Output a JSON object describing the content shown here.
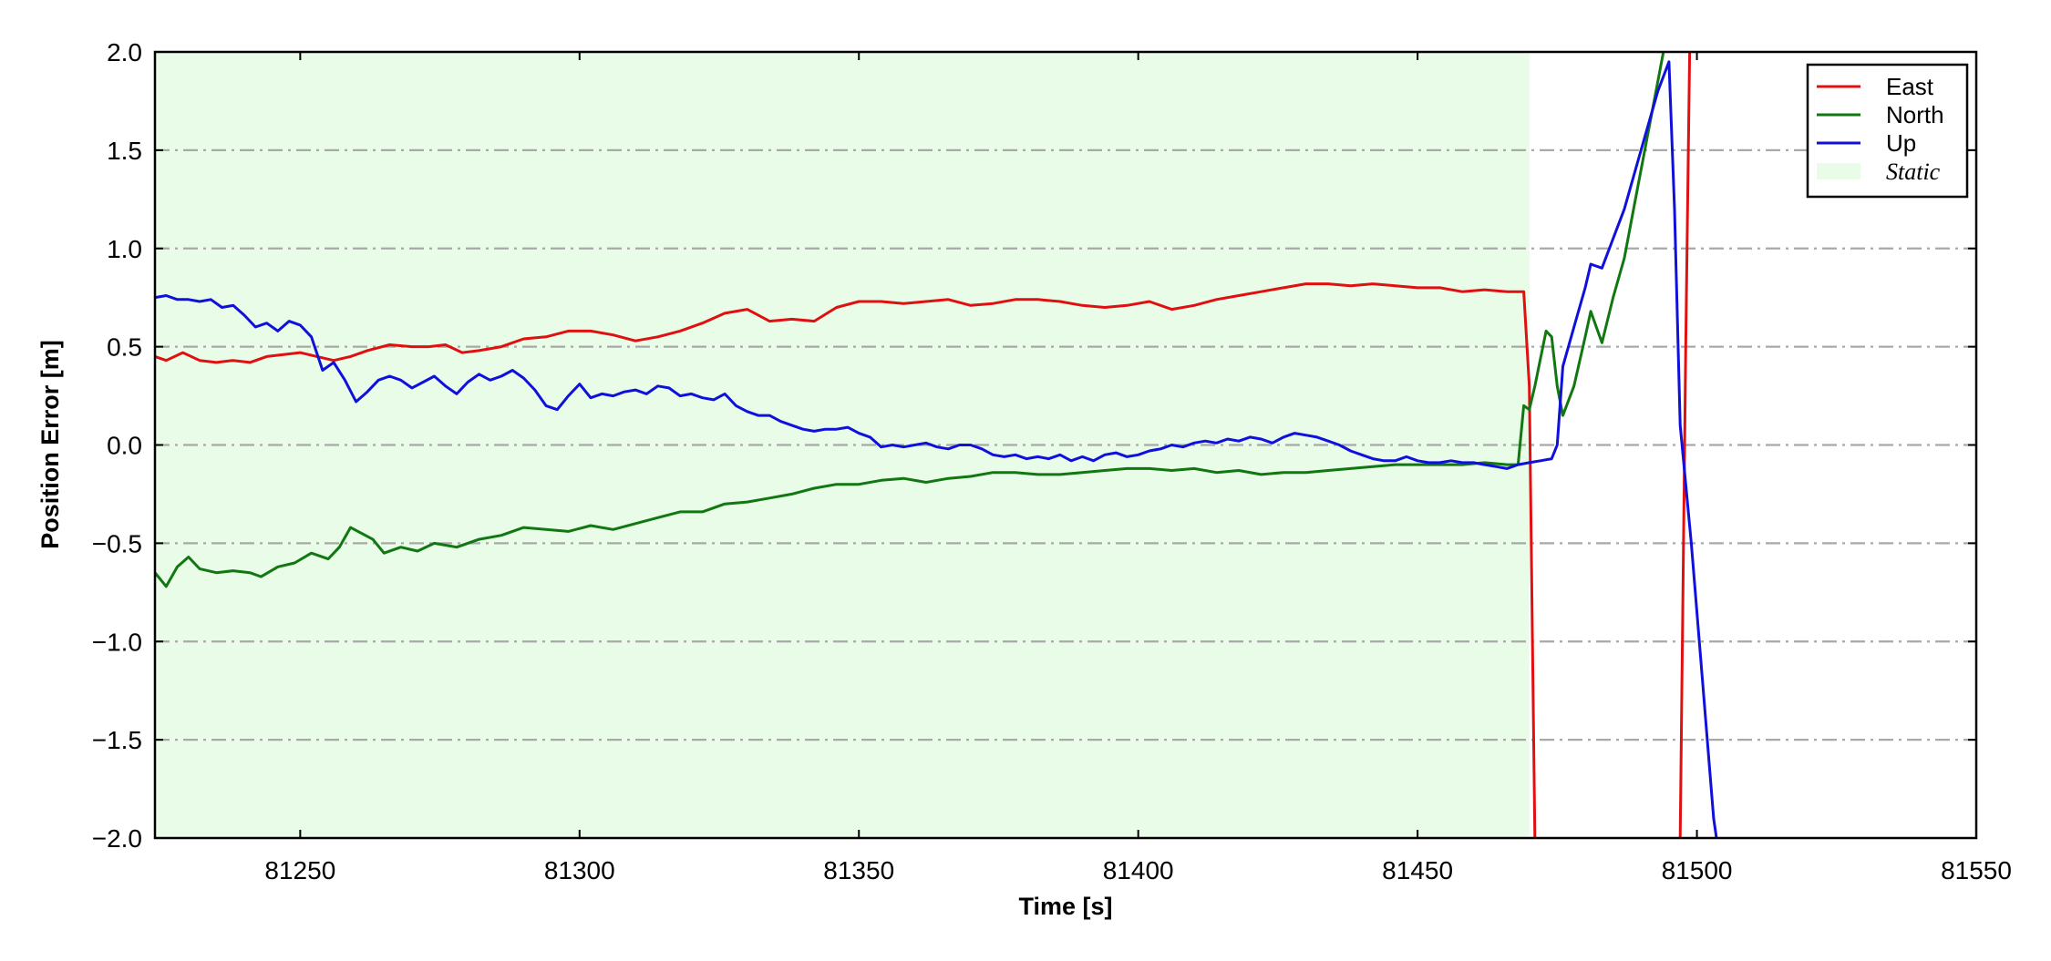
{
  "chart_data": {
    "type": "line",
    "title": "",
    "xlabel": "Time [s]",
    "ylabel": "Position Error [m]",
    "xlim": [
      81224,
      81550
    ],
    "ylim": [
      -2.0,
      2.0
    ],
    "x_ticks": [
      81250,
      81300,
      81350,
      81400,
      81450,
      81500,
      81550
    ],
    "x_tick_labels": [
      "81250",
      "81300",
      "81350",
      "81400",
      "81450",
      "81500",
      "81550"
    ],
    "y_ticks": [
      2.0,
      1.5,
      1.0,
      0.5,
      0.0,
      -0.5,
      -1.0,
      -1.5,
      -2.0
    ],
    "y_tick_labels": [
      "2.0",
      "1.5",
      "1.0",
      "0.5",
      "0.0",
      "−0.5",
      "−1.0",
      "−1.5",
      "−2.0"
    ],
    "grid": "horizontal dash-dot",
    "legend_position": "top-right",
    "shaded_region": {
      "label": "Static",
      "x": [
        81224,
        81470
      ],
      "color": "#e8fce8"
    },
    "series": [
      {
        "name": "East",
        "color": "#e01010",
        "points": [
          [
            81224,
            0.45
          ],
          [
            81226,
            0.43
          ],
          [
            81229,
            0.47
          ],
          [
            81232,
            0.43
          ],
          [
            81235,
            0.42
          ],
          [
            81238,
            0.43
          ],
          [
            81241,
            0.42
          ],
          [
            81244,
            0.45
          ],
          [
            81247,
            0.46
          ],
          [
            81250,
            0.47
          ],
          [
            81253,
            0.45
          ],
          [
            81256,
            0.43
          ],
          [
            81259,
            0.45
          ],
          [
            81262,
            0.48
          ],
          [
            81266,
            0.51
          ],
          [
            81270,
            0.5
          ],
          [
            81273,
            0.5
          ],
          [
            81276,
            0.51
          ],
          [
            81279,
            0.47
          ],
          [
            81282,
            0.48
          ],
          [
            81286,
            0.5
          ],
          [
            81290,
            0.54
          ],
          [
            81294,
            0.55
          ],
          [
            81298,
            0.58
          ],
          [
            81302,
            0.58
          ],
          [
            81306,
            0.56
          ],
          [
            81310,
            0.53
          ],
          [
            81314,
            0.55
          ],
          [
            81318,
            0.58
          ],
          [
            81322,
            0.62
          ],
          [
            81326,
            0.67
          ],
          [
            81330,
            0.69
          ],
          [
            81334,
            0.63
          ],
          [
            81338,
            0.64
          ],
          [
            81342,
            0.63
          ],
          [
            81346,
            0.7
          ],
          [
            81350,
            0.73
          ],
          [
            81354,
            0.73
          ],
          [
            81358,
            0.72
          ],
          [
            81362,
            0.73
          ],
          [
            81366,
            0.74
          ],
          [
            81370,
            0.71
          ],
          [
            81374,
            0.72
          ],
          [
            81378,
            0.74
          ],
          [
            81382,
            0.74
          ],
          [
            81386,
            0.73
          ],
          [
            81390,
            0.71
          ],
          [
            81394,
            0.7
          ],
          [
            81398,
            0.71
          ],
          [
            81402,
            0.73
          ],
          [
            81406,
            0.69
          ],
          [
            81410,
            0.71
          ],
          [
            81414,
            0.74
          ],
          [
            81418,
            0.76
          ],
          [
            81422,
            0.78
          ],
          [
            81426,
            0.8
          ],
          [
            81430,
            0.82
          ],
          [
            81434,
            0.82
          ],
          [
            81438,
            0.81
          ],
          [
            81442,
            0.82
          ],
          [
            81446,
            0.81
          ],
          [
            81450,
            0.8
          ],
          [
            81454,
            0.8
          ],
          [
            81458,
            0.78
          ],
          [
            81462,
            0.79
          ],
          [
            81466,
            0.78
          ],
          [
            81469,
            0.78
          ],
          [
            81470,
            0.3
          ],
          [
            81471,
            -2.0
          ]
        ],
        "points_after_gap": [
          [
            81497,
            -2.0
          ],
          [
            81498,
            0.5
          ],
          [
            81498.7,
            2.0
          ]
        ]
      },
      {
        "name": "North",
        "color": "#117711",
        "points": [
          [
            81224,
            -0.65
          ],
          [
            81226,
            -0.72
          ],
          [
            81228,
            -0.62
          ],
          [
            81230,
            -0.57
          ],
          [
            81232,
            -0.63
          ],
          [
            81235,
            -0.65
          ],
          [
            81238,
            -0.64
          ],
          [
            81241,
            -0.65
          ],
          [
            81243,
            -0.67
          ],
          [
            81246,
            -0.62
          ],
          [
            81249,
            -0.6
          ],
          [
            81252,
            -0.55
          ],
          [
            81255,
            -0.58
          ],
          [
            81257,
            -0.52
          ],
          [
            81259,
            -0.42
          ],
          [
            81261,
            -0.45
          ],
          [
            81263,
            -0.48
          ],
          [
            81265,
            -0.55
          ],
          [
            81268,
            -0.52
          ],
          [
            81271,
            -0.54
          ],
          [
            81274,
            -0.5
          ],
          [
            81278,
            -0.52
          ],
          [
            81282,
            -0.48
          ],
          [
            81286,
            -0.46
          ],
          [
            81290,
            -0.42
          ],
          [
            81294,
            -0.43
          ],
          [
            81298,
            -0.44
          ],
          [
            81302,
            -0.41
          ],
          [
            81306,
            -0.43
          ],
          [
            81310,
            -0.4
          ],
          [
            81314,
            -0.37
          ],
          [
            81318,
            -0.34
          ],
          [
            81322,
            -0.34
          ],
          [
            81326,
            -0.3
          ],
          [
            81330,
            -0.29
          ],
          [
            81334,
            -0.27
          ],
          [
            81338,
            -0.25
          ],
          [
            81342,
            -0.22
          ],
          [
            81346,
            -0.2
          ],
          [
            81350,
            -0.2
          ],
          [
            81354,
            -0.18
          ],
          [
            81358,
            -0.17
          ],
          [
            81362,
            -0.19
          ],
          [
            81366,
            -0.17
          ],
          [
            81370,
            -0.16
          ],
          [
            81374,
            -0.14
          ],
          [
            81378,
            -0.14
          ],
          [
            81382,
            -0.15
          ],
          [
            81386,
            -0.15
          ],
          [
            81390,
            -0.14
          ],
          [
            81394,
            -0.13
          ],
          [
            81398,
            -0.12
          ],
          [
            81402,
            -0.12
          ],
          [
            81406,
            -0.13
          ],
          [
            81410,
            -0.12
          ],
          [
            81414,
            -0.14
          ],
          [
            81418,
            -0.13
          ],
          [
            81422,
            -0.15
          ],
          [
            81426,
            -0.14
          ],
          [
            81430,
            -0.14
          ],
          [
            81434,
            -0.13
          ],
          [
            81438,
            -0.12
          ],
          [
            81442,
            -0.11
          ],
          [
            81446,
            -0.1
          ],
          [
            81450,
            -0.1
          ],
          [
            81454,
            -0.1
          ],
          [
            81458,
            -0.1
          ],
          [
            81462,
            -0.09
          ],
          [
            81466,
            -0.1
          ],
          [
            81468,
            -0.1
          ],
          [
            81469,
            0.2
          ],
          [
            81470,
            0.18
          ],
          [
            81471,
            0.3
          ],
          [
            81473,
            0.58
          ],
          [
            81474,
            0.55
          ],
          [
            81475,
            0.3
          ],
          [
            81476,
            0.15
          ],
          [
            81478,
            0.3
          ],
          [
            81480,
            0.55
          ],
          [
            81481,
            0.68
          ],
          [
            81482,
            0.6
          ],
          [
            81483,
            0.52
          ],
          [
            81485,
            0.75
          ],
          [
            81487,
            0.95
          ],
          [
            81489,
            1.25
          ],
          [
            81491,
            1.55
          ],
          [
            81493,
            1.85
          ],
          [
            81494,
            2.0
          ]
        ]
      },
      {
        "name": "Up",
        "color": "#1010dd",
        "points": [
          [
            81224,
            0.75
          ],
          [
            81226,
            0.76
          ],
          [
            81228,
            0.74
          ],
          [
            81230,
            0.74
          ],
          [
            81232,
            0.73
          ],
          [
            81234,
            0.74
          ],
          [
            81236,
            0.7
          ],
          [
            81238,
            0.71
          ],
          [
            81240,
            0.66
          ],
          [
            81242,
            0.6
          ],
          [
            81244,
            0.62
          ],
          [
            81246,
            0.58
          ],
          [
            81248,
            0.63
          ],
          [
            81250,
            0.61
          ],
          [
            81252,
            0.55
          ],
          [
            81254,
            0.38
          ],
          [
            81256,
            0.42
          ],
          [
            81258,
            0.33
          ],
          [
            81260,
            0.22
          ],
          [
            81262,
            0.27
          ],
          [
            81264,
            0.33
          ],
          [
            81266,
            0.35
          ],
          [
            81268,
            0.33
          ],
          [
            81270,
            0.29
          ],
          [
            81272,
            0.32
          ],
          [
            81274,
            0.35
          ],
          [
            81276,
            0.3
          ],
          [
            81278,
            0.26
          ],
          [
            81280,
            0.32
          ],
          [
            81282,
            0.36
          ],
          [
            81284,
            0.33
          ],
          [
            81286,
            0.35
          ],
          [
            81288,
            0.38
          ],
          [
            81290,
            0.34
          ],
          [
            81292,
            0.28
          ],
          [
            81294,
            0.2
          ],
          [
            81296,
            0.18
          ],
          [
            81298,
            0.25
          ],
          [
            81300,
            0.31
          ],
          [
            81302,
            0.24
          ],
          [
            81304,
            0.26
          ],
          [
            81306,
            0.25
          ],
          [
            81308,
            0.27
          ],
          [
            81310,
            0.28
          ],
          [
            81312,
            0.26
          ],
          [
            81314,
            0.3
          ],
          [
            81316,
            0.29
          ],
          [
            81318,
            0.25
          ],
          [
            81320,
            0.26
          ],
          [
            81322,
            0.24
          ],
          [
            81324,
            0.23
          ],
          [
            81326,
            0.26
          ],
          [
            81328,
            0.2
          ],
          [
            81330,
            0.17
          ],
          [
            81332,
            0.15
          ],
          [
            81334,
            0.15
          ],
          [
            81336,
            0.12
          ],
          [
            81338,
            0.1
          ],
          [
            81340,
            0.08
          ],
          [
            81342,
            0.07
          ],
          [
            81344,
            0.08
          ],
          [
            81346,
            0.08
          ],
          [
            81348,
            0.09
          ],
          [
            81350,
            0.06
          ],
          [
            81352,
            0.04
          ],
          [
            81354,
            -0.01
          ],
          [
            81356,
            0.0
          ],
          [
            81358,
            -0.01
          ],
          [
            81360,
            0.0
          ],
          [
            81362,
            0.01
          ],
          [
            81364,
            -0.01
          ],
          [
            81366,
            -0.02
          ],
          [
            81368,
            0.0
          ],
          [
            81370,
            0.0
          ],
          [
            81372,
            -0.02
          ],
          [
            81374,
            -0.05
          ],
          [
            81376,
            -0.06
          ],
          [
            81378,
            -0.05
          ],
          [
            81380,
            -0.07
          ],
          [
            81382,
            -0.06
          ],
          [
            81384,
            -0.07
          ],
          [
            81386,
            -0.05
          ],
          [
            81388,
            -0.08
          ],
          [
            81390,
            -0.06
          ],
          [
            81392,
            -0.08
          ],
          [
            81394,
            -0.05
          ],
          [
            81396,
            -0.04
          ],
          [
            81398,
            -0.06
          ],
          [
            81400,
            -0.05
          ],
          [
            81402,
            -0.03
          ],
          [
            81404,
            -0.02
          ],
          [
            81406,
            0.0
          ],
          [
            81408,
            -0.01
          ],
          [
            81410,
            0.01
          ],
          [
            81412,
            0.02
          ],
          [
            81414,
            0.01
          ],
          [
            81416,
            0.03
          ],
          [
            81418,
            0.02
          ],
          [
            81420,
            0.04
          ],
          [
            81422,
            0.03
          ],
          [
            81424,
            0.01
          ],
          [
            81426,
            0.04
          ],
          [
            81428,
            0.06
          ],
          [
            81430,
            0.05
          ],
          [
            81432,
            0.04
          ],
          [
            81434,
            0.02
          ],
          [
            81436,
            0.0
          ],
          [
            81438,
            -0.03
          ],
          [
            81440,
            -0.05
          ],
          [
            81442,
            -0.07
          ],
          [
            81444,
            -0.08
          ],
          [
            81446,
            -0.08
          ],
          [
            81448,
            -0.06
          ],
          [
            81450,
            -0.08
          ],
          [
            81452,
            -0.09
          ],
          [
            81454,
            -0.09
          ],
          [
            81456,
            -0.08
          ],
          [
            81458,
            -0.09
          ],
          [
            81460,
            -0.09
          ],
          [
            81462,
            -0.1
          ],
          [
            81464,
            -0.11
          ],
          [
            81466,
            -0.12
          ],
          [
            81468,
            -0.1
          ],
          [
            81470,
            -0.09
          ],
          [
            81472,
            -0.08
          ],
          [
            81474,
            -0.07
          ],
          [
            81475,
            0.0
          ],
          [
            81476,
            0.4
          ],
          [
            81478,
            0.6
          ],
          [
            81480,
            0.8
          ],
          [
            81481,
            0.92
          ],
          [
            81483,
            0.9
          ],
          [
            81485,
            1.05
          ],
          [
            81487,
            1.2
          ],
          [
            81489,
            1.4
          ],
          [
            81491,
            1.6
          ],
          [
            81493,
            1.8
          ],
          [
            81495,
            1.95
          ],
          [
            81496,
            1.2
          ],
          [
            81497,
            0.1
          ],
          [
            81499,
            -0.5
          ],
          [
            81501,
            -1.2
          ],
          [
            81503,
            -1.9
          ],
          [
            81503.5,
            -2.0
          ]
        ]
      }
    ]
  }
}
